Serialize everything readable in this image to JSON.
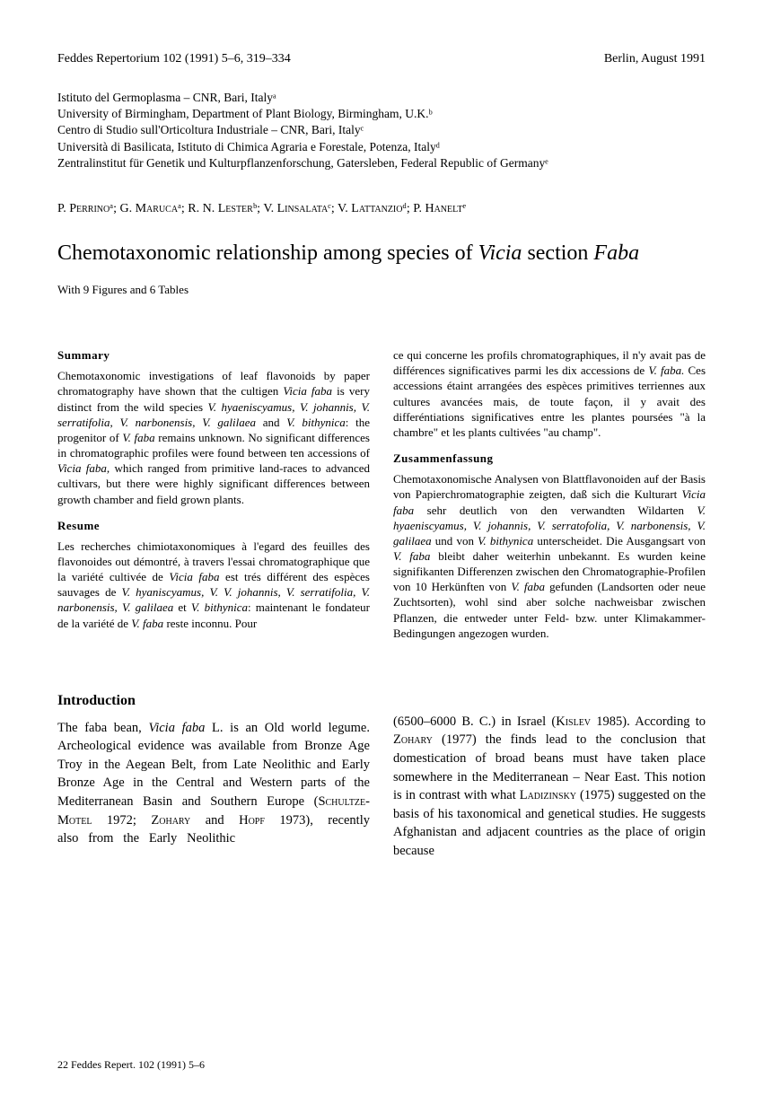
{
  "header": {
    "left": "Feddes Repertorium 102 (1991) 5–6, 319–334",
    "right": "Berlin, August 1991"
  },
  "affiliations": [
    "Istituto del Germoplasma – CNR, Bari, Italyᵃ",
    "University of Birmingham, Department of Plant Biology, Birmingham, U.K.ᵇ",
    "Centro di Studio sull'Orticoltura Industriale – CNR, Bari, Italyᶜ",
    "Università di Basilicata, Istituto di Chimica Agraria e Forestale, Potenza, Italyᵈ",
    "Zentralinstitut für Genetik und Kulturpflanzenforschung, Gatersleben, Federal Republic of Germanyᵉ"
  ],
  "authors_html": "P. P<span class='sc'>errino</span>ᵃ; G. M<span class='sc'>aruca</span>ᵃ; R. N. L<span class='sc'>ester</span>ᵇ; V. L<span class='sc'>insalata</span>ᶜ; V. L<span class='sc'>attanzio</span>ᵈ; P. H<span class='sc'>anelt</span>ᵉ",
  "title_html": "Chemotaxonomic relationship among species of <span class='it'>Vicia</span> section <span class='it'>Faba</span>",
  "subtitle": "With 9 Figures and 6 Tables",
  "summary_head": "Summary",
  "summary_html": "Chemotaxonomic investigations of leaf flavonoids by paper chromatography have shown that the cultigen <span class='it'>Vicia faba</span> is very distinct from the wild species <span class='it'>V. hyaeniscyamus, V. johannis, V. serratifolia, V. narbonensis, V. galilaea</span> and <span class='it'>V. bithynica</span>: the progenitor of <span class='it'>V. faba</span> remains unknown. No significant differences in chromatographic profiles were found between ten accessions of <span class='it'>Vicia faba,</span> which ranged from primitive land-races to advanced cultivars, but there were highly significant differences between growth chamber and field grown plants.",
  "resume_head": "Resume",
  "resume_html": "Les recherches chimiotaxonomiques à l'egard des feuilles des flavonoides out démontré, à travers l'essai chromatographique que la variété cultivée de <span class='it'>Vicia faba</span> est trés différent des espèces sauvages de <span class='it'>V. hyaniscyamus, V. V. johannis, V. serratifolia, V. narbonensis, V. galilaea</span> et <span class='it'>V. bithynica</span>: maintenant le fondateur de la variété de <span class='it'>V. faba</span> reste inconnu. Pour",
  "resume_cont_html": "ce qui concerne les profils chromatographiques, il n'y avait pas de différences significatives parmi les dix accessions de <span class='it'>V. faba.</span> Ces accessions étaint arrangées des espèces primitives terriennes aux cultures avancées mais, de toute façon, il y avait des differéntiations significatives entre les plantes poursées \"à la chambre\" et les plants cultivées \"au champ\".",
  "zusammen_head": "Zusammenfassung",
  "zusammen_html": "Chemotaxonomische Analysen von Blattflavonoiden auf der Basis von Papierchromatographie zeigten, daß sich die Kulturart <span class='it'>Vicia faba</span> sehr deutlich von den verwandten Wildarten <span class='it'>V. hyaeniscyamus, V. johannis, V. serratofolia, V. narbonensis, V. galilaea</span> und von <span class='it'>V. bithynica</span> unterscheidet. Die Ausgangsart von <span class='it'>V. faba</span> bleibt daher weiterhin unbekannt. Es wurden keine signifikanten Differenzen zwischen den Chromatographie-Profilen von 10 Herkünften von <span class='it'>V. faba</span> gefunden (Landsorten oder neue Zuchtsorten), wohl sind aber solche nachweisbar zwischen Pflanzen, die entweder unter Feld- bzw. unter Klimakammer-Bedingungen angezogen wurden.",
  "intro_head": "Introduction",
  "intro_left_html": "The faba bean, <span class='it'>Vicia faba</span> L. is an Old world legume. Archeological evidence was available from Bronze Age Troy in the Aegean Belt, from Late Neolithic and Early Bronze Age in the Central and Western parts of the Mediterranean Basin and Southern Europe (S<span class='sc'>chultze</span>-M<span class='sc'>otel</span> 1972; Z<span class='sc'>ohary</span> and H<span class='sc'>opf</span> 1973), recently also&nbsp;&nbsp;&nbsp;from&nbsp;&nbsp;&nbsp;the&nbsp;&nbsp;&nbsp;Early&nbsp;&nbsp;&nbsp;Neolithic",
  "intro_right_html": "(6500–6000 B. C.) in Israel (K<span class='sc'>islev</span> 1985). According to Z<span class='sc'>ohary</span> (1977) the finds lead to the conclusion that domestication of broad beans must have taken place somewhere in the Mediterranean – Near East. This notion is in contrast with what L<span class='sc'>adizinsky</span> (1975) suggested on the basis of his taxonomical and genetical studies. He suggests Afghanistan and adjacent countries as the place of origin because",
  "footer": "22   Feddes Repert. 102 (1991) 5–6"
}
